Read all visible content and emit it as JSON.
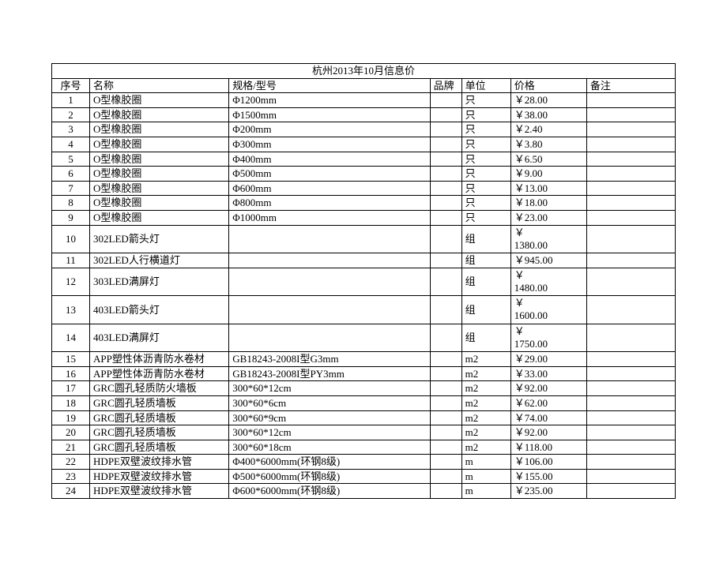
{
  "title": "杭州2013年10月信息价",
  "columns": [
    "序号",
    "名称",
    "规格/型号",
    "品牌",
    "单位",
    "价格",
    "备注"
  ],
  "rows": [
    {
      "seq": "1",
      "name": "O型橡胶圈",
      "spec": "Φ1200mm",
      "brand": "",
      "unit": "只",
      "price": "￥28.00",
      "note": ""
    },
    {
      "seq": "2",
      "name": "O型橡胶圈",
      "spec": "Φ1500mm",
      "brand": "",
      "unit": "只",
      "price": "￥38.00",
      "note": ""
    },
    {
      "seq": "3",
      "name": "O型橡胶圈",
      "spec": "Φ200mm",
      "brand": "",
      "unit": "只",
      "price": "￥2.40",
      "note": ""
    },
    {
      "seq": "4",
      "name": "O型橡胶圈",
      "spec": "Φ300mm",
      "brand": "",
      "unit": "只",
      "price": "￥3.80",
      "note": ""
    },
    {
      "seq": "5",
      "name": "O型橡胶圈",
      "spec": "Φ400mm",
      "brand": "",
      "unit": "只",
      "price": "￥6.50",
      "note": ""
    },
    {
      "seq": "6",
      "name": "O型橡胶圈",
      "spec": "Φ500mm",
      "brand": "",
      "unit": "只",
      "price": "￥9.00",
      "note": ""
    },
    {
      "seq": "7",
      "name": "O型橡胶圈",
      "spec": "Φ600mm",
      "brand": "",
      "unit": "只",
      "price": "￥13.00",
      "note": ""
    },
    {
      "seq": "8",
      "name": "O型橡胶圈",
      "spec": "Φ800mm",
      "brand": "",
      "unit": "只",
      "price": "￥18.00",
      "note": ""
    },
    {
      "seq": "9",
      "name": "O型橡胶圈",
      "spec": "Φ1000mm",
      "brand": "",
      "unit": "只",
      "price": "￥23.00",
      "note": ""
    },
    {
      "seq": "10",
      "name": "302LED箭头灯",
      "spec": "",
      "brand": "",
      "unit": "组",
      "price": "￥\n1380.00",
      "note": "",
      "multiline": true
    },
    {
      "seq": "11",
      "name": "302LED人行横道灯",
      "spec": "",
      "brand": "",
      "unit": "组",
      "price": "￥945.00",
      "note": ""
    },
    {
      "seq": "12",
      "name": "303LED满屏灯",
      "spec": "",
      "brand": "",
      "unit": "组",
      "price": "￥\n1480.00",
      "note": "",
      "multiline": true
    },
    {
      "seq": "13",
      "name": "403LED箭头灯",
      "spec": "",
      "brand": "",
      "unit": "组",
      "price": "￥\n1600.00",
      "note": "",
      "multiline": true
    },
    {
      "seq": "14",
      "name": "403LED满屏灯",
      "spec": "",
      "brand": "",
      "unit": "组",
      "price": "￥\n1750.00",
      "note": "",
      "multiline": true
    },
    {
      "seq": "15",
      "name": "APP塑性体沥青防水卷材",
      "spec": "GB18243-2008I型G3mm",
      "brand": "",
      "unit": "m2",
      "price": "￥29.00",
      "note": ""
    },
    {
      "seq": "16",
      "name": "APP塑性体沥青防水卷材",
      "spec": "GB18243-2008I型PY3mm",
      "brand": "",
      "unit": "m2",
      "price": "￥33.00",
      "note": ""
    },
    {
      "seq": "17",
      "name": "GRC圆孔轻质防火墙板",
      "spec": "300*60*12cm",
      "brand": "",
      "unit": "m2",
      "price": "￥92.00",
      "note": ""
    },
    {
      "seq": "18",
      "name": "GRC圆孔轻质墙板",
      "spec": "300*60*6cm",
      "brand": "",
      "unit": "m2",
      "price": "￥62.00",
      "note": ""
    },
    {
      "seq": "19",
      "name": "GRC圆孔轻质墙板",
      "spec": "300*60*9cm",
      "brand": "",
      "unit": "m2",
      "price": "￥74.00",
      "note": ""
    },
    {
      "seq": "20",
      "name": "GRC圆孔轻质墙板",
      "spec": "300*60*12cm",
      "brand": "",
      "unit": "m2",
      "price": "￥92.00",
      "note": ""
    },
    {
      "seq": "21",
      "name": "GRC圆孔轻质墙板",
      "spec": "300*60*18cm",
      "brand": "",
      "unit": "m2",
      "price": "￥118.00",
      "note": ""
    },
    {
      "seq": "22",
      "name": "HDPE双壁波纹排水管",
      "spec": "Φ400*6000mm(环钢8级)",
      "brand": "",
      "unit": "m",
      "price": "￥106.00",
      "note": ""
    },
    {
      "seq": "23",
      "name": "HDPE双壁波纹排水管",
      "spec": "Φ500*6000mm(环钢8级)",
      "brand": "",
      "unit": "m",
      "price": "￥155.00",
      "note": ""
    },
    {
      "seq": "24",
      "name": "HDPE双壁波纹排水管",
      "spec": "Φ600*6000mm(环钢8级)",
      "brand": "",
      "unit": "m",
      "price": "￥235.00",
      "note": ""
    }
  ]
}
